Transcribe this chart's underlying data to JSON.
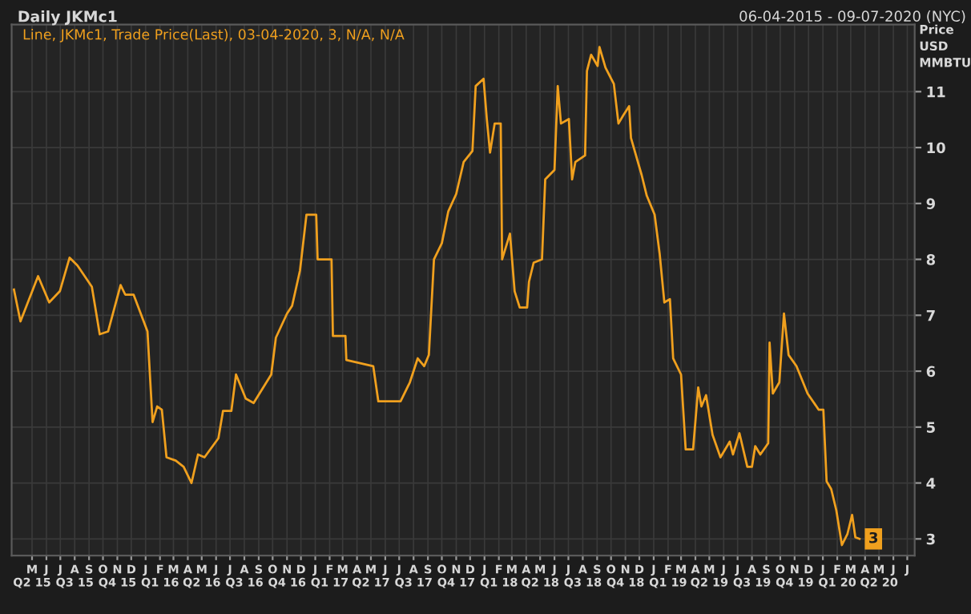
{
  "chart_data": {
    "type": "line",
    "title": "Daily JKMc1",
    "subtitle": "06-04-2015 - 09-07-2020 (NYC)",
    "ylabel": "Price\nUSD\nMMBTU",
    "annotations": [
      "Line, JKMc1, Trade Price(Last), 03-04-2020, 3, N/A, N/A",
      {
        "text": "3",
        "x": "2020-04-03",
        "y": 3
      }
    ],
    "series": [
      {
        "color": "#f0a01e",
        "x": [
          "2015-04-06",
          "2015-04-20",
          "2015-05-28",
          "2015-06-21",
          "2015-07-14",
          "2015-08-04",
          "2015-08-21",
          "2015-09-21",
          "2015-10-08",
          "2015-10-26",
          "2015-11-22",
          "2015-12-02",
          "2015-12-20",
          "2016-01-19",
          "2016-01-30",
          "2016-02-09",
          "2016-02-19",
          "2016-02-29",
          "2016-03-20",
          "2016-04-06",
          "2016-04-23",
          "2016-05-07",
          "2016-05-21",
          "2016-06-20",
          "2016-06-30",
          "2016-07-18",
          "2016-07-28",
          "2016-08-18",
          "2016-09-04",
          "2016-10-12",
          "2016-10-22",
          "2016-11-15",
          "2016-11-26",
          "2016-12-13",
          "2016-12-27",
          "2017-01-17",
          "2017-01-20",
          "2017-02-19",
          "2017-02-22",
          "2017-03-21",
          "2017-03-23",
          "2017-05-20",
          "2017-05-31",
          "2017-07-18",
          "2017-08-07",
          "2017-08-24",
          "2017-09-07",
          "2017-09-17",
          "2017-09-28",
          "2017-10-15",
          "2017-10-29",
          "2017-11-15",
          "2017-12-01",
          "2017-12-20",
          "2017-12-27",
          "2018-01-13",
          "2018-01-20",
          "2018-01-27",
          "2018-02-06",
          "2018-02-19",
          "2018-02-22",
          "2018-03-11",
          "2018-03-21",
          "2018-04-01",
          "2018-04-17",
          "2018-04-21",
          "2018-05-01",
          "2018-05-19",
          "2018-05-26",
          "2018-06-15",
          "2018-06-22",
          "2018-06-29",
          "2018-07-16",
          "2018-07-23",
          "2018-07-30",
          "2018-08-20",
          "2018-08-24",
          "2018-09-02",
          "2018-09-16",
          "2018-09-20",
          "2018-10-03",
          "2018-10-21",
          "2018-10-31",
          "2018-11-10",
          "2018-11-23",
          "2018-11-27",
          "2018-12-20",
          "2018-12-31",
          "2019-01-17",
          "2019-01-28",
          "2019-02-07",
          "2019-02-19",
          "2019-02-26",
          "2019-03-15",
          "2019-03-25",
          "2019-04-10",
          "2019-04-21",
          "2019-04-28",
          "2019-05-08",
          "2019-05-22",
          "2019-06-08",
          "2019-06-28",
          "2019-07-05",
          "2019-07-19",
          "2019-08-05",
          "2019-08-15",
          "2019-08-22",
          "2019-09-02",
          "2019-09-19",
          "2019-09-22",
          "2019-09-29",
          "2019-10-13",
          "2019-10-23",
          "2019-11-02",
          "2019-11-19",
          "2019-12-13",
          "2020-01-06",
          "2020-01-16",
          "2020-01-23",
          "2020-02-02",
          "2020-02-13",
          "2020-02-25",
          "2020-03-08",
          "2020-03-18",
          "2020-03-25",
          "2020-04-03"
        ],
        "values": [
          7.46,
          6.89,
          7.7,
          7.23,
          7.43,
          8.03,
          7.89,
          7.51,
          6.66,
          6.71,
          7.54,
          7.37,
          7.37,
          6.71,
          5.09,
          5.37,
          5.31,
          4.46,
          4.4,
          4.29,
          4.0,
          4.51,
          4.46,
          4.8,
          5.29,
          5.29,
          5.94,
          5.51,
          5.43,
          5.94,
          6.6,
          7.03,
          7.17,
          7.8,
          8.8,
          8.8,
          8.0,
          8.0,
          6.63,
          6.63,
          6.2,
          6.09,
          5.46,
          5.46,
          5.8,
          6.23,
          6.09,
          6.29,
          8.0,
          8.29,
          8.86,
          9.17,
          9.74,
          9.94,
          11.1,
          11.23,
          10.51,
          9.91,
          10.43,
          10.43,
          8.0,
          8.46,
          7.43,
          7.14,
          7.14,
          7.6,
          7.94,
          8.0,
          9.43,
          9.6,
          11.1,
          10.43,
          10.51,
          9.43,
          9.74,
          9.86,
          11.37,
          11.66,
          11.46,
          11.8,
          11.43,
          11.14,
          10.43,
          10.57,
          10.74,
          10.17,
          9.51,
          9.14,
          8.8,
          8.09,
          7.23,
          7.29,
          6.23,
          5.94,
          4.6,
          4.6,
          5.71,
          5.37,
          5.57,
          4.86,
          4.46,
          4.74,
          4.51,
          4.89,
          4.29,
          4.29,
          4.66,
          4.51,
          4.71,
          6.51,
          5.6,
          5.8,
          7.03,
          6.29,
          6.09,
          5.6,
          5.31,
          5.31,
          4.03,
          3.89,
          3.51,
          2.89,
          3.09,
          3.43,
          3.03,
          3.0
        ]
      }
    ],
    "xlim": [
      "2015-04-01",
      "2020-07-31"
    ],
    "xticks": [
      {
        "value": "2015-05-15",
        "label": "M\nQ2 15"
      },
      {
        "value": "2015-06-15",
        "label": "J"
      },
      {
        "value": "2015-07-15",
        "label": "J"
      },
      {
        "value": "2015-08-15",
        "label": "A\nQ3 15"
      },
      {
        "value": "2015-09-15",
        "label": "S"
      },
      {
        "value": "2015-10-15",
        "label": "O"
      },
      {
        "value": "2015-11-15",
        "label": "N\nQ4 15"
      },
      {
        "value": "2015-12-15",
        "label": "D"
      },
      {
        "value": "2016-01-15",
        "label": "J"
      },
      {
        "value": "2016-02-15",
        "label": "F\nQ1 16"
      },
      {
        "value": "2016-03-15",
        "label": "M"
      },
      {
        "value": "2016-04-15",
        "label": "A"
      },
      {
        "value": "2016-05-15",
        "label": "M\nQ2 16"
      },
      {
        "value": "2016-06-15",
        "label": "J"
      },
      {
        "value": "2016-07-15",
        "label": "J"
      },
      {
        "value": "2016-08-15",
        "label": "A\nQ3 16"
      },
      {
        "value": "2016-09-15",
        "label": "S"
      },
      {
        "value": "2016-10-15",
        "label": "O"
      },
      {
        "value": "2016-11-15",
        "label": "N\nQ4 16"
      },
      {
        "value": "2016-12-15",
        "label": "D"
      },
      {
        "value": "2017-01-15",
        "label": "J"
      },
      {
        "value": "2017-02-15",
        "label": "F\nQ1 17"
      },
      {
        "value": "2017-03-15",
        "label": "M"
      },
      {
        "value": "2017-04-15",
        "label": "A"
      },
      {
        "value": "2017-05-15",
        "label": "M\nQ2 17"
      },
      {
        "value": "2017-06-15",
        "label": "J"
      },
      {
        "value": "2017-07-15",
        "label": "J"
      },
      {
        "value": "2017-08-15",
        "label": "A\nQ3 17"
      },
      {
        "value": "2017-09-15",
        "label": "S"
      },
      {
        "value": "2017-10-15",
        "label": "O"
      },
      {
        "value": "2017-11-15",
        "label": "N\nQ4 17"
      },
      {
        "value": "2017-12-15",
        "label": "D"
      },
      {
        "value": "2018-01-15",
        "label": "J"
      },
      {
        "value": "2018-02-15",
        "label": "F\nQ1 18"
      },
      {
        "value": "2018-03-15",
        "label": "M"
      },
      {
        "value": "2018-04-15",
        "label": "A"
      },
      {
        "value": "2018-05-15",
        "label": "M\nQ2 18"
      },
      {
        "value": "2018-06-15",
        "label": "J"
      },
      {
        "value": "2018-07-15",
        "label": "J"
      },
      {
        "value": "2018-08-15",
        "label": "A\nQ3 18"
      },
      {
        "value": "2018-09-15",
        "label": "S"
      },
      {
        "value": "2018-10-15",
        "label": "O"
      },
      {
        "value": "2018-11-15",
        "label": "N\nQ4 18"
      },
      {
        "value": "2018-12-15",
        "label": "D"
      },
      {
        "value": "2019-01-15",
        "label": "J"
      },
      {
        "value": "2019-02-15",
        "label": "F\nQ1 19"
      },
      {
        "value": "2019-03-15",
        "label": "M"
      },
      {
        "value": "2019-04-15",
        "label": "A"
      },
      {
        "value": "2019-05-15",
        "label": "M\nQ2 19"
      },
      {
        "value": "2019-06-15",
        "label": "J"
      },
      {
        "value": "2019-07-15",
        "label": "J"
      },
      {
        "value": "2019-08-15",
        "label": "A\nQ3 19"
      },
      {
        "value": "2019-09-15",
        "label": "S"
      },
      {
        "value": "2019-10-15",
        "label": "O"
      },
      {
        "value": "2019-11-15",
        "label": "N\nQ4 19"
      },
      {
        "value": "2019-12-15",
        "label": "D"
      },
      {
        "value": "2020-01-15",
        "label": "J"
      },
      {
        "value": "2020-02-15",
        "label": "F\nQ1 20"
      },
      {
        "value": "2020-03-15",
        "label": "M"
      },
      {
        "value": "2020-04-15",
        "label": "A"
      },
      {
        "value": "2020-05-15",
        "label": "M\nQ2 20"
      },
      {
        "value": "2020-06-15",
        "label": "J"
      },
      {
        "value": "2020-07-15",
        "label": "J"
      }
    ],
    "ylim": [
      2.7,
      12.2
    ],
    "yticks": [
      3,
      4,
      5,
      6,
      7,
      8,
      9,
      10,
      11
    ],
    "grid": true
  }
}
